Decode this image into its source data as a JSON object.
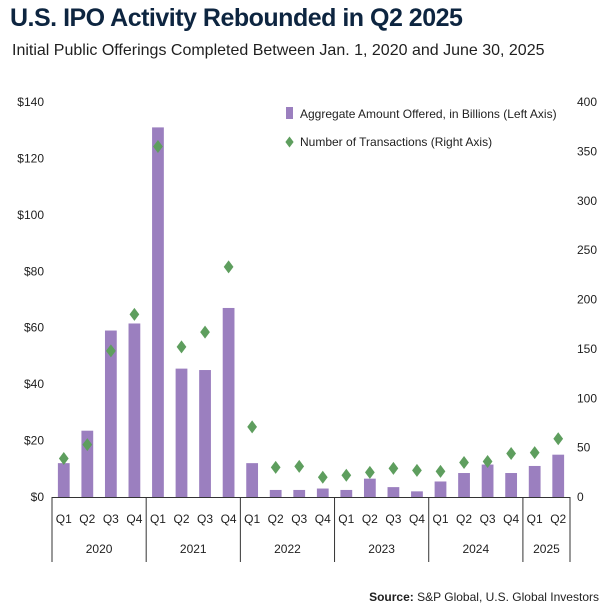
{
  "title": "U.S. IPO Activity Rebounded in Q2 2025",
  "subtitle": "Initial Public Offerings Completed Between Jan. 1, 2020 and June 30, 2025",
  "source_label": "Source:",
  "source_text": "S&P Global, U.S. Global Investors",
  "colors": {
    "bar": "#9b7fbf",
    "diamond": "#5e9e5e",
    "title": "#0d2540",
    "axis": "#333333"
  },
  "chart_data": {
    "type": "bar",
    "legend_position": "top-right",
    "grid": false,
    "categories": [
      "Q1",
      "Q2",
      "Q3",
      "Q4",
      "Q1",
      "Q2",
      "Q3",
      "Q4",
      "Q1",
      "Q2",
      "Q3",
      "Q4",
      "Q1",
      "Q2",
      "Q3",
      "Q4",
      "Q1",
      "Q2",
      "Q3",
      "Q4",
      "Q1",
      "Q2"
    ],
    "years": [
      {
        "label": "2020",
        "start": 0,
        "count": 4
      },
      {
        "label": "2021",
        "start": 4,
        "count": 4
      },
      {
        "label": "2022",
        "start": 8,
        "count": 4
      },
      {
        "label": "2023",
        "start": 12,
        "count": 4
      },
      {
        "label": "2024",
        "start": 16,
        "count": 4
      },
      {
        "label": "2025",
        "start": 20,
        "count": 2
      }
    ],
    "series": [
      {
        "name": "Aggregate Amount Offered, in Billions (Left Axis)",
        "type": "bar",
        "axis": "left",
        "values": [
          12,
          23.5,
          59,
          61.5,
          131,
          45.5,
          45,
          67,
          12,
          2.5,
          2.5,
          3,
          2.5,
          6.5,
          3.5,
          2,
          5.5,
          8.5,
          11.5,
          8.5,
          11,
          15
        ]
      },
      {
        "name": "Number of Transactions (Right Axis)",
        "type": "scatter",
        "axis": "right",
        "values": [
          39,
          53,
          148,
          185,
          355,
          152,
          167,
          233,
          71,
          30,
          31,
          20,
          22,
          25,
          29,
          27,
          26,
          35,
          36,
          44,
          45,
          59
        ]
      }
    ],
    "y_left": {
      "range": [
        0,
        140
      ],
      "ticks": [
        0,
        20,
        40,
        60,
        80,
        100,
        120,
        140
      ],
      "tick_labels": [
        "$0",
        "$20",
        "$40",
        "$60",
        "$80",
        "$100",
        "$120",
        "$140"
      ]
    },
    "y_right": {
      "range": [
        0,
        400
      ],
      "ticks": [
        0,
        50,
        100,
        150,
        200,
        250,
        300,
        350,
        400
      ],
      "tick_labels": [
        "0",
        "50",
        "100",
        "150",
        "200",
        "250",
        "300",
        "350",
        "400"
      ]
    }
  }
}
